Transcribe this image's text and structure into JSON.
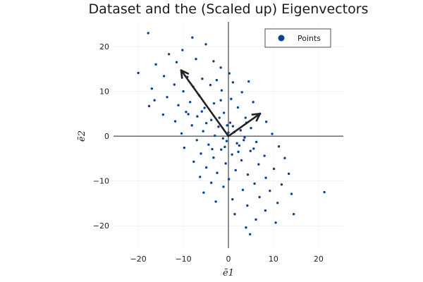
{
  "chart_data": {
    "type": "scatter",
    "title": "Dataset and the (Scaled up) Eigenvectors",
    "xlabel": "ē1",
    "ylabel": "ē2",
    "xlim": [
      -25.5,
      25.5
    ],
    "ylim": [
      -25,
      25.5
    ],
    "xticks": [
      -20,
      -10,
      0,
      10,
      20
    ],
    "yticks": [
      -20,
      -10,
      0,
      10,
      20
    ],
    "xtick_labels": [
      "−20",
      "−10",
      "0",
      "10",
      "20"
    ],
    "ytick_labels": [
      "−20",
      "−10",
      "0",
      "10",
      "20"
    ],
    "grid": true,
    "legend_position": "top-right",
    "series": [
      {
        "name": "Points",
        "color": "#0b4393",
        "points": [
          [
            -17.8,
            23.0
          ],
          [
            -8.0,
            22.0
          ],
          [
            -5.0,
            20.5
          ],
          [
            -13.2,
            18.3
          ],
          [
            -10.2,
            19.2
          ],
          [
            -7.2,
            17.2
          ],
          [
            -3.3,
            16.7
          ],
          [
            -11.5,
            16.5
          ],
          [
            -16.1,
            16.0
          ],
          [
            -1.7,
            15.3
          ],
          [
            -20.0,
            14.1
          ],
          [
            0.2,
            14.0
          ],
          [
            -14.3,
            13.4
          ],
          [
            -9.1,
            13.2
          ],
          [
            -5.8,
            12.8
          ],
          [
            -2.6,
            12.5
          ],
          [
            1.0,
            12.0
          ],
          [
            4.5,
            12.2
          ],
          [
            -12.0,
            11.5
          ],
          [
            -7.8,
            11.0
          ],
          [
            -4.0,
            11.4
          ],
          [
            -17.0,
            10.6
          ],
          [
            -10.0,
            10.0
          ],
          [
            -1.5,
            10.2
          ],
          [
            3.0,
            9.8
          ],
          [
            -6.5,
            9.1
          ],
          [
            -13.6,
            8.7
          ],
          [
            0.6,
            8.3
          ],
          [
            -16.4,
            8.0
          ],
          [
            -8.5,
            7.6
          ],
          [
            5.5,
            7.6
          ],
          [
            -3.2,
            7.3
          ],
          [
            -11.1,
            6.9
          ],
          [
            -17.6,
            6.7
          ],
          [
            -5.3,
            6.3
          ],
          [
            2.1,
            6.4
          ],
          [
            -9.4,
            5.4
          ],
          [
            -1.0,
            5.2
          ],
          [
            7.0,
            5.0
          ],
          [
            -14.5,
            4.8
          ],
          [
            -6.9,
            4.4
          ],
          [
            3.8,
            4.1
          ],
          [
            -3.8,
            3.6
          ],
          [
            -11.8,
            3.3
          ],
          [
            0.4,
            3.0
          ],
          [
            8.4,
            3.2
          ],
          [
            -8.1,
            2.4
          ],
          [
            -2.2,
            2.1
          ],
          [
            5.0,
            1.8
          ],
          [
            -5.6,
            1.1
          ],
          [
            1.3,
            0.9
          ],
          [
            -10.4,
            0.6
          ],
          [
            9.7,
            0.5
          ],
          [
            -3.0,
            0.1
          ],
          [
            3.6,
            -0.3
          ],
          [
            -7.0,
            -0.9
          ],
          [
            -0.4,
            -1.1
          ],
          [
            6.2,
            -1.3
          ],
          [
            -4.4,
            -1.9
          ],
          [
            2.4,
            -2.1
          ],
          [
            -9.8,
            -2.6
          ],
          [
            11.2,
            -2.3
          ],
          [
            -1.6,
            -3.0
          ],
          [
            4.9,
            -3.3
          ],
          [
            -6.1,
            -3.9
          ],
          [
            0.8,
            -4.1
          ],
          [
            8.0,
            -4.4
          ],
          [
            -3.3,
            -4.8
          ],
          [
            12.5,
            -4.9
          ],
          [
            2.9,
            -5.4
          ],
          [
            -7.7,
            -5.7
          ],
          [
            -0.6,
            -6.1
          ],
          [
            6.7,
            -6.3
          ],
          [
            -4.9,
            -7.0
          ],
          [
            10.1,
            -7.3
          ],
          [
            1.6,
            -7.6
          ],
          [
            -2.5,
            -8.2
          ],
          [
            4.3,
            -8.6
          ],
          [
            13.4,
            -8.4
          ],
          [
            -6.3,
            -9.1
          ],
          [
            8.3,
            -9.3
          ],
          [
            0.1,
            -9.6
          ],
          [
            -3.8,
            -10.4
          ],
          [
            5.8,
            -10.6
          ],
          [
            11.8,
            -10.8
          ],
          [
            -1.1,
            -11.3
          ],
          [
            3.2,
            -12.0
          ],
          [
            9.2,
            -12.2
          ],
          [
            -5.5,
            -12.6
          ],
          [
            14.0,
            -12.9
          ],
          [
            6.9,
            -13.6
          ],
          [
            0.9,
            -14.1
          ],
          [
            -2.8,
            -14.6
          ],
          [
            10.9,
            -14.9
          ],
          [
            4.2,
            -15.5
          ],
          [
            8.2,
            -16.6
          ],
          [
            1.4,
            -17.4
          ],
          [
            14.5,
            -17.4
          ],
          [
            6.1,
            -18.6
          ],
          [
            10.5,
            -19.3
          ],
          [
            3.9,
            -20.4
          ],
          [
            4.8,
            -21.9
          ],
          [
            21.3,
            -12.5
          ],
          [
            -0.3,
            2.4
          ],
          [
            1.9,
            -1.6
          ],
          [
            -2.0,
            4.1
          ],
          [
            2.7,
            1.3
          ],
          [
            -1.2,
            -0.5
          ],
          [
            0.0,
            0.8
          ],
          [
            -4.9,
            2.9
          ],
          [
            3.4,
            -0.9
          ],
          [
            -0.8,
            -2.4
          ],
          [
            1.0,
            2.2
          ],
          [
            -3.6,
            -2.9
          ],
          [
            5.6,
            -2.8
          ],
          [
            -5.9,
            5.5
          ],
          [
            4.0,
            3.0
          ],
          [
            -1.7,
            8.0
          ],
          [
            2.2,
            -3.5
          ],
          [
            -8.9,
            4.9
          ]
        ]
      }
    ],
    "eigenvectors": [
      {
        "x": [
          0,
          -10.5
        ],
        "y": [
          0,
          14.7
        ],
        "color": "#222222"
      },
      {
        "x": [
          0,
          7.0
        ],
        "y": [
          0,
          5.0
        ],
        "color": "#222222"
      }
    ]
  }
}
